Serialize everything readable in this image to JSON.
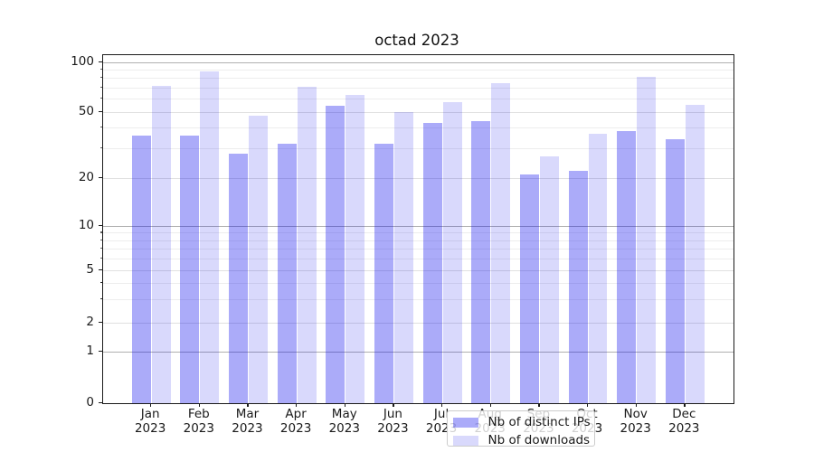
{
  "figure_title": "octad 2023",
  "chart_data": {
    "type": "bar",
    "title": "octad 2023",
    "categories": [
      "Jan 2023",
      "Feb 2023",
      "Mar 2023",
      "Apr 2023",
      "May 2023",
      "Jun 2023",
      "Jul 2023",
      "Aug 2023",
      "Sep 2023",
      "Oct 2023",
      "Nov 2023",
      "Dec 2023"
    ],
    "series": [
      {
        "name": "Nb of distinct IPs",
        "color": "#ababf9",
        "fill": "rgba(0,0,238,0.33)",
        "values": [
          36,
          36,
          28,
          32,
          54,
          32,
          43,
          44,
          21,
          22,
          38,
          34
        ]
      },
      {
        "name": "Nb of downloads",
        "color": "#d9d9fc",
        "fill": "rgba(0,0,238,0.15)",
        "values": [
          72,
          88,
          47,
          71,
          63,
          50,
          57,
          74,
          27,
          37,
          81,
          55
        ]
      }
    ],
    "xlabel": "",
    "ylabel": "",
    "y_scale": "symlog-like (linear below 1, compressed log 1-10, log above 10)",
    "y_tick_labels": [
      "100",
      "50",
      "20",
      "10",
      "5",
      "2",
      "1",
      "0"
    ],
    "ylim": [
      0,
      110
    ],
    "grid": true,
    "legend_position": "lower center"
  },
  "x_axis": {
    "months": [
      "Jan",
      "Feb",
      "Mar",
      "Apr",
      "May",
      "Jun",
      "Jul",
      "Aug",
      "Sep",
      "Oct",
      "Nov",
      "Dec"
    ],
    "year": "2023"
  },
  "colors": {
    "ips_bar": "#ababf9",
    "downloads_bar": "#d9d9fc",
    "grid_major": "#b0b0b0",
    "grid_minor": "#ededed",
    "spine": "#1a1a1a",
    "background": "#ffffff"
  }
}
